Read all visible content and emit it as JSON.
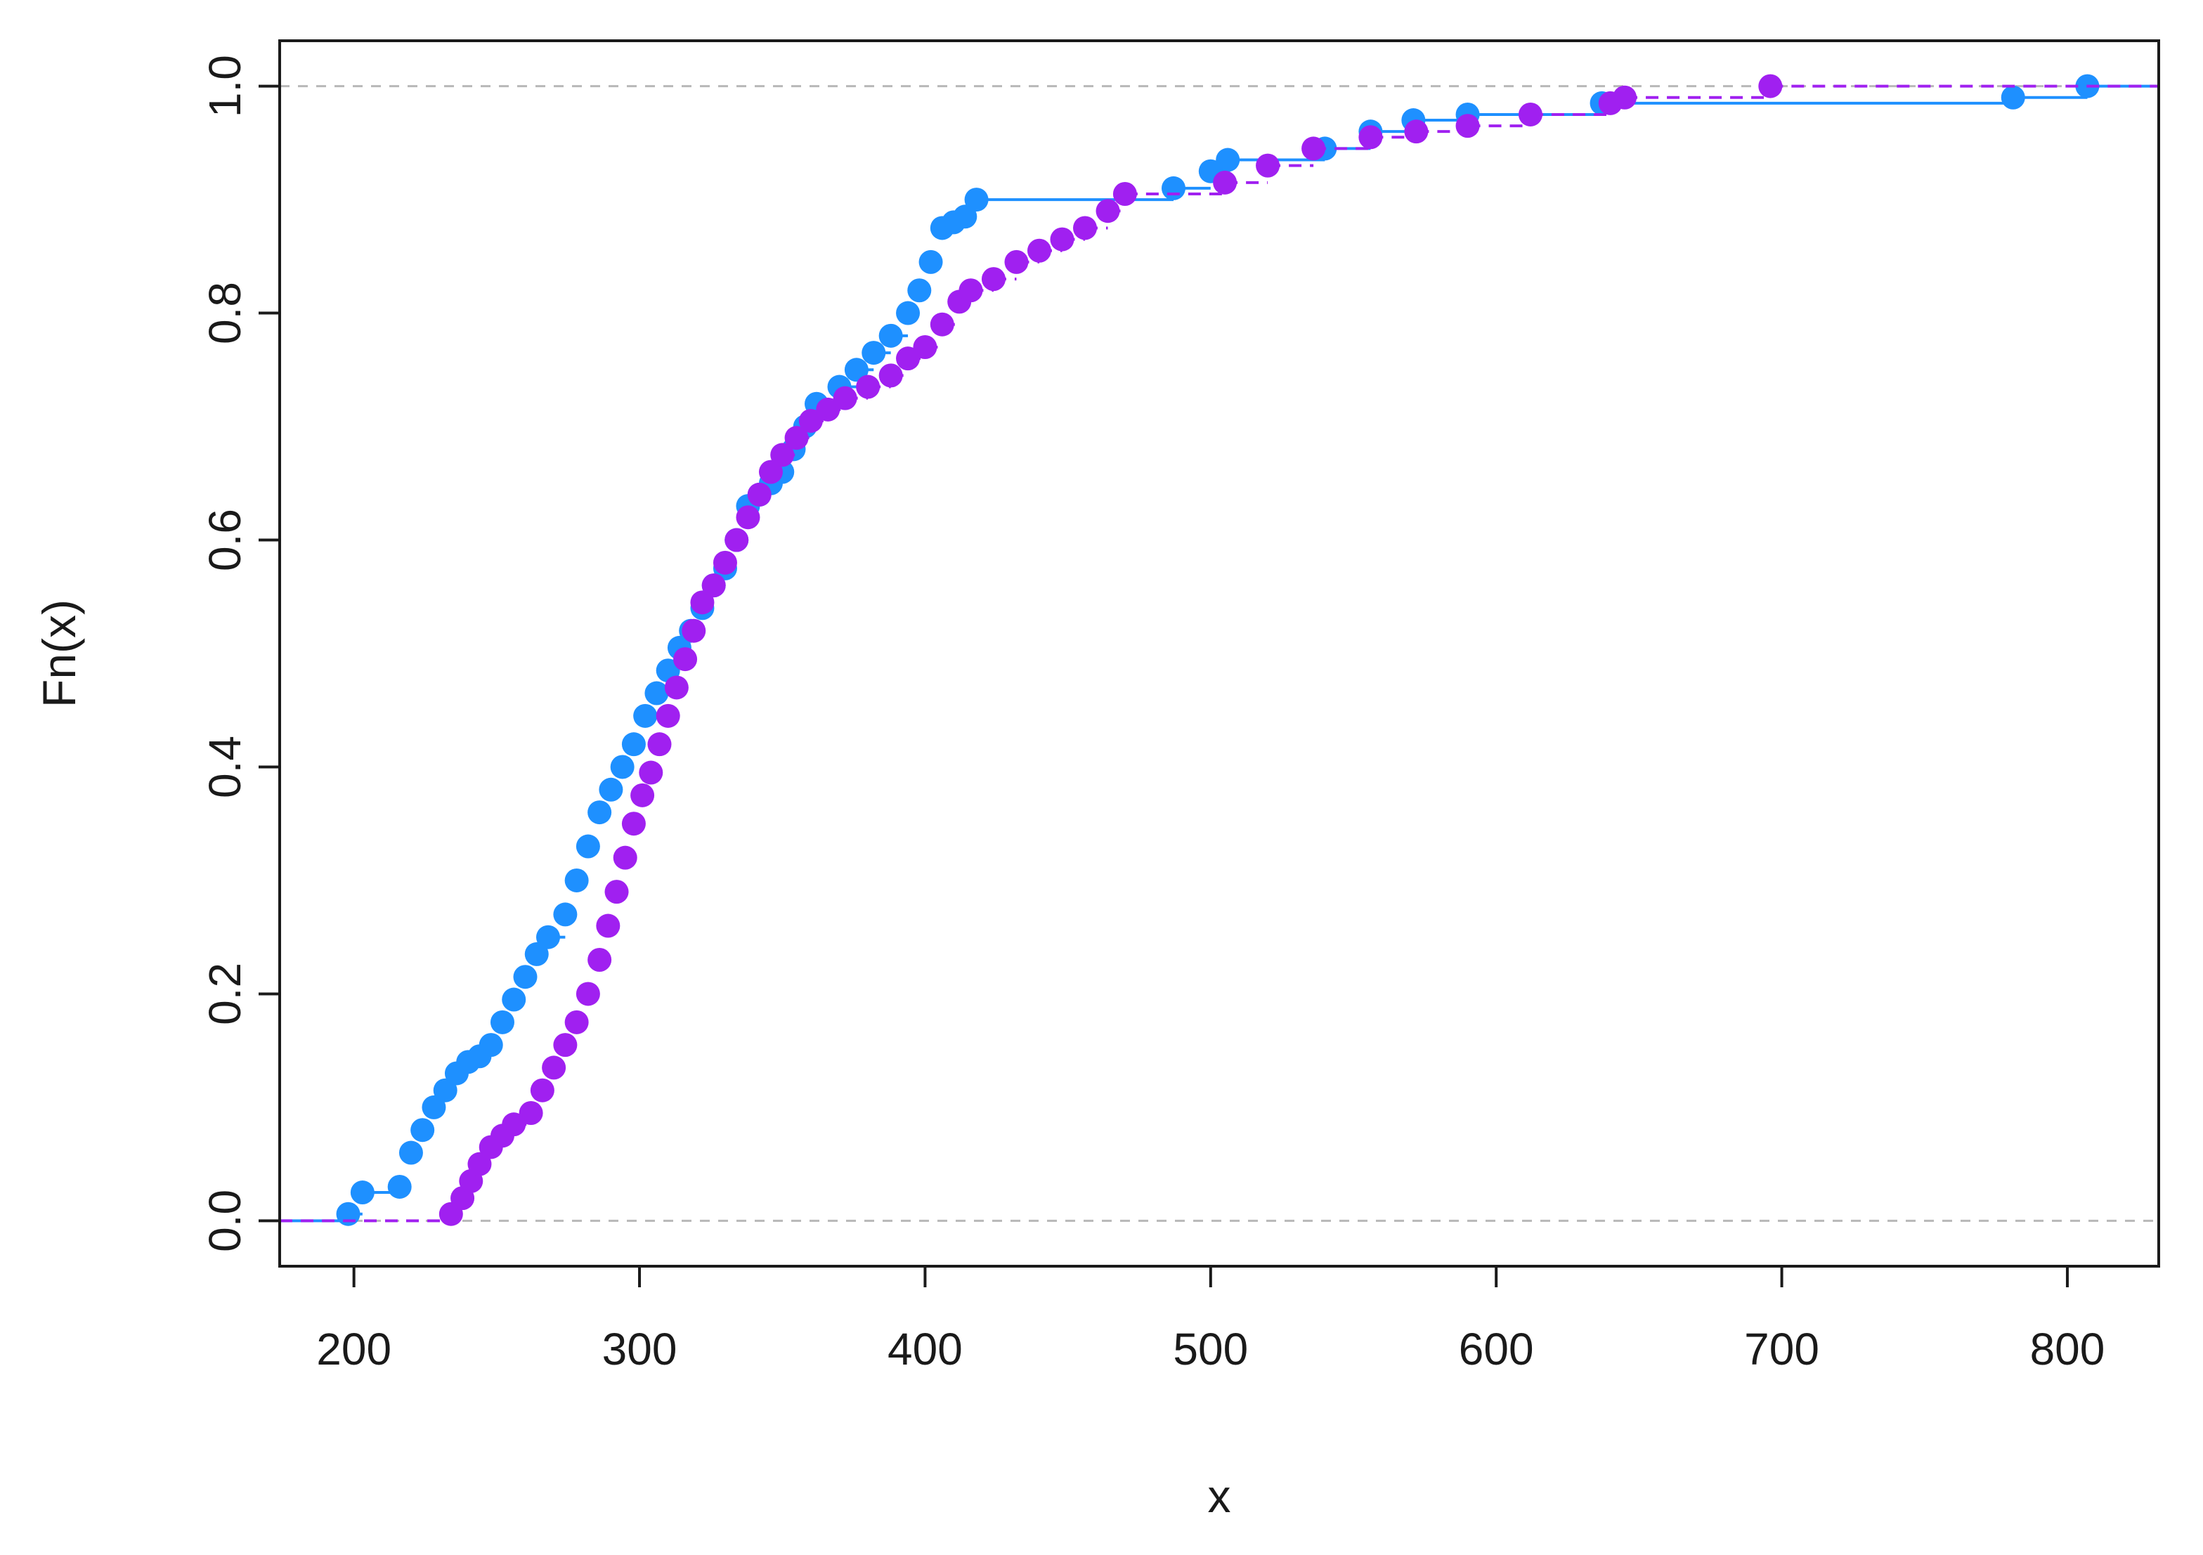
{
  "chart_data": {
    "type": "line",
    "subtype": "empirical-cdf-step",
    "title": "",
    "xlabel": "x",
    "ylabel": "Fn(x)",
    "xlim": [
      174,
      832
    ],
    "ylim": [
      -0.04,
      1.04
    ],
    "x_ticks": [
      200,
      300,
      400,
      500,
      600,
      700,
      800
    ],
    "y_ticks": [
      0.0,
      0.2,
      0.4,
      0.6,
      0.8,
      1.0
    ],
    "x_tick_labels": [
      "200",
      "300",
      "400",
      "500",
      "600",
      "700",
      "800"
    ],
    "y_tick_labels": [
      "0.0",
      "0.2",
      "0.4",
      "0.6",
      "0.8",
      "1.0"
    ],
    "grid": false,
    "reference_lines_y": [
      0.0,
      1.0
    ],
    "legend": "none",
    "series": [
      {
        "color": "#1E90FF",
        "line_style": "solid",
        "points": [
          [
            198,
            0.006
          ],
          [
            203,
            0.025
          ],
          [
            216,
            0.03
          ],
          [
            220,
            0.06
          ],
          [
            224,
            0.08
          ],
          [
            228,
            0.1
          ],
          [
            232,
            0.115
          ],
          [
            236,
            0.13
          ],
          [
            240,
            0.14
          ],
          [
            244,
            0.145
          ],
          [
            248,
            0.155
          ],
          [
            252,
            0.175
          ],
          [
            256,
            0.195
          ],
          [
            260,
            0.215
          ],
          [
            264,
            0.235
          ],
          [
            268,
            0.25
          ],
          [
            274,
            0.27
          ],
          [
            278,
            0.3
          ],
          [
            282,
            0.33
          ],
          [
            286,
            0.36
          ],
          [
            290,
            0.38
          ],
          [
            294,
            0.4
          ],
          [
            298,
            0.42
          ],
          [
            302,
            0.445
          ],
          [
            306,
            0.465
          ],
          [
            310,
            0.485
          ],
          [
            314,
            0.505
          ],
          [
            318,
            0.52
          ],
          [
            322,
            0.54
          ],
          [
            326,
            0.56
          ],
          [
            330,
            0.575
          ],
          [
            334,
            0.6
          ],
          [
            338,
            0.63
          ],
          [
            342,
            0.64
          ],
          [
            346,
            0.65
          ],
          [
            350,
            0.66
          ],
          [
            354,
            0.68
          ],
          [
            358,
            0.7
          ],
          [
            362,
            0.72
          ],
          [
            370,
            0.735
          ],
          [
            376,
            0.75
          ],
          [
            382,
            0.765
          ],
          [
            388,
            0.78
          ],
          [
            394,
            0.8
          ],
          [
            398,
            0.82
          ],
          [
            402,
            0.845
          ],
          [
            406,
            0.875
          ],
          [
            410,
            0.88
          ],
          [
            414,
            0.885
          ],
          [
            418,
            0.9
          ],
          [
            487,
            0.91
          ],
          [
            500,
            0.925
          ],
          [
            506,
            0.935
          ],
          [
            540,
            0.945
          ],
          [
            556,
            0.96
          ],
          [
            571,
            0.97
          ],
          [
            590,
            0.975
          ],
          [
            637,
            0.985
          ],
          [
            781,
            0.99
          ],
          [
            807,
            1.0
          ]
        ]
      },
      {
        "color": "#A020F0",
        "line_style": "dashed",
        "points": [
          [
            234,
            0.006
          ],
          [
            238,
            0.02
          ],
          [
            241,
            0.035
          ],
          [
            244,
            0.05
          ],
          [
            248,
            0.065
          ],
          [
            252,
            0.075
          ],
          [
            256,
            0.085
          ],
          [
            262,
            0.095
          ],
          [
            266,
            0.115
          ],
          [
            270,
            0.135
          ],
          [
            274,
            0.155
          ],
          [
            278,
            0.175
          ],
          [
            282,
            0.2
          ],
          [
            286,
            0.23
          ],
          [
            289,
            0.26
          ],
          [
            292,
            0.29
          ],
          [
            295,
            0.32
          ],
          [
            298,
            0.35
          ],
          [
            301,
            0.375
          ],
          [
            304,
            0.395
          ],
          [
            307,
            0.42
          ],
          [
            310,
            0.445
          ],
          [
            313,
            0.47
          ],
          [
            316,
            0.495
          ],
          [
            319,
            0.52
          ],
          [
            322,
            0.545
          ],
          [
            326,
            0.56
          ],
          [
            330,
            0.58
          ],
          [
            334,
            0.6
          ],
          [
            338,
            0.62
          ],
          [
            342,
            0.64
          ],
          [
            346,
            0.66
          ],
          [
            350,
            0.675
          ],
          [
            355,
            0.69
          ],
          [
            360,
            0.705
          ],
          [
            366,
            0.715
          ],
          [
            372,
            0.725
          ],
          [
            380,
            0.735
          ],
          [
            388,
            0.745
          ],
          [
            394,
            0.76
          ],
          [
            400,
            0.77
          ],
          [
            406,
            0.79
          ],
          [
            412,
            0.81
          ],
          [
            416,
            0.82
          ],
          [
            424,
            0.83
          ],
          [
            432,
            0.845
          ],
          [
            440,
            0.855
          ],
          [
            448,
            0.865
          ],
          [
            456,
            0.875
          ],
          [
            464,
            0.89
          ],
          [
            470,
            0.905
          ],
          [
            505,
            0.915
          ],
          [
            520,
            0.93
          ],
          [
            536,
            0.945
          ],
          [
            556,
            0.955
          ],
          [
            572,
            0.96
          ],
          [
            590,
            0.965
          ],
          [
            612,
            0.975
          ],
          [
            640,
            0.985
          ],
          [
            645,
            0.99
          ],
          [
            696,
            1.0
          ]
        ]
      }
    ]
  }
}
